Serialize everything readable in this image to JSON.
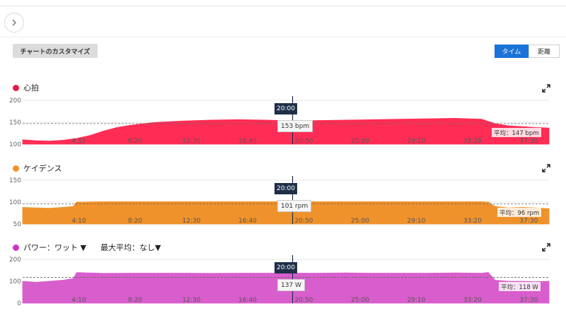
{
  "toolbar": {
    "customize_label": "チャートのカスタマイズ",
    "toggle": [
      {
        "label": "タイム",
        "active": true
      },
      {
        "label": "距離",
        "active": false
      }
    ]
  },
  "x_ticks": [
    "4:10",
    "8:20",
    "12:30",
    "16:40",
    "20:50",
    "25:00",
    "29:10",
    "33:20",
    "37:30"
  ],
  "cursor": {
    "time": "20:00"
  },
  "charts": [
    {
      "title": "心拍",
      "color": "#ff2d55",
      "y_ticks": [
        "200",
        "150",
        "100"
      ],
      "cursor_value": "153 bpm",
      "avg_label": "平均：147 bpm"
    },
    {
      "title": "ケイデンス",
      "color": "#f0922b",
      "y_ticks": [
        "150",
        "100",
        "50"
      ],
      "cursor_value": "101 rpm",
      "avg_label": "平均：96 rpm"
    },
    {
      "title": "パワー：ワット ▼",
      "extra": "最大平均：なし▼",
      "color": "#d95ecd",
      "y_ticks": [
        "200",
        "100",
        "0"
      ],
      "cursor_value": "137 W",
      "avg_label": "平均：118 W"
    }
  ],
  "chart_data": [
    {
      "type": "area",
      "title": "心拍",
      "x": [
        "0:00",
        "1:00",
        "2:00",
        "3:00",
        "4:00",
        "5:00",
        "6:00",
        "7:00",
        "8:00",
        "9:00",
        "10:00",
        "12:00",
        "14:00",
        "16:00",
        "18:00",
        "20:00",
        "22:00",
        "24:00",
        "26:00",
        "28:00",
        "30:00",
        "32:00",
        "33:00",
        "34:00",
        "35:00",
        "36:00",
        "37:00",
        "38:00",
        "39:00"
      ],
      "values": [
        110,
        108,
        107,
        109,
        113,
        120,
        130,
        138,
        143,
        147,
        150,
        153,
        155,
        156,
        155,
        153,
        154,
        155,
        156,
        157,
        158,
        159,
        158,
        157,
        147,
        142,
        140,
        138,
        137
      ],
      "ylim": [
        100,
        200
      ],
      "average": 147,
      "cursor": {
        "time": "20:00",
        "value": 153
      }
    },
    {
      "type": "area",
      "title": "ケイデンス",
      "x": [
        "0:00",
        "1:00",
        "2:00",
        "3:00",
        "3:45",
        "4:00",
        "6:00",
        "8:00",
        "10:00",
        "12:00",
        "14:00",
        "16:00",
        "18:00",
        "20:00",
        "22:00",
        "24:00",
        "26:00",
        "28:00",
        "30:00",
        "32:00",
        "34:00",
        "34:30",
        "35:00",
        "36:00",
        "37:00",
        "38:00",
        "39:00"
      ],
      "values": [
        88,
        87,
        86,
        88,
        90,
        100,
        101,
        101,
        101,
        101,
        101,
        101,
        101,
        101,
        101,
        101,
        101,
        101,
        101,
        101,
        101,
        100,
        90,
        87,
        88,
        87,
        85
      ],
      "ylim": [
        50,
        150
      ],
      "average": 96,
      "cursor": {
        "time": "20:00",
        "value": 101
      }
    },
    {
      "type": "area",
      "title": "パワー：ワット",
      "x": [
        "0:00",
        "1:00",
        "2:00",
        "3:00",
        "3:45",
        "4:00",
        "6:00",
        "8:00",
        "10:00",
        "12:00",
        "14:00",
        "16:00",
        "18:00",
        "20:00",
        "22:00",
        "24:00",
        "26:00",
        "28:00",
        "30:00",
        "32:00",
        "34:00",
        "34:30",
        "35:00",
        "36:00",
        "37:00",
        "38:00",
        "39:00"
      ],
      "values": [
        100,
        95,
        100,
        105,
        112,
        140,
        136,
        137,
        137,
        137,
        136,
        137,
        137,
        137,
        137,
        138,
        137,
        137,
        137,
        138,
        137,
        140,
        105,
        100,
        100,
        98,
        100
      ],
      "ylim": [
        0,
        200
      ],
      "average": 118,
      "cursor": {
        "time": "20:00",
        "value": 137
      }
    }
  ]
}
